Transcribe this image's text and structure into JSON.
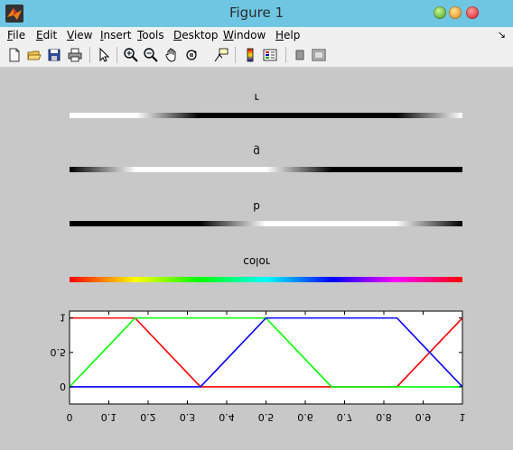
{
  "window": {
    "title": "Figure 1"
  },
  "menu": {
    "items": [
      {
        "label": "File",
        "underline": "F",
        "rest": "ile"
      },
      {
        "label": "Edit",
        "underline": "E",
        "rest": "dit"
      },
      {
        "label": "View",
        "underline": "V",
        "rest": "iew"
      },
      {
        "label": "Insert",
        "underline": "I",
        "rest": "nsert"
      },
      {
        "label": "Tools",
        "underline": "T",
        "rest": "ools"
      },
      {
        "label": "Desktop",
        "underline": "D",
        "rest": "esktop"
      },
      {
        "label": "Window",
        "underline": "W",
        "rest": "indow"
      },
      {
        "label": "Help",
        "underline": "H",
        "rest": "elp"
      }
    ],
    "dock_glyph": "↘"
  },
  "toolbar": {
    "buttons": [
      {
        "name": "new-figure-button",
        "icon": "new-file-icon"
      },
      {
        "name": "open-file-button",
        "icon": "open-folder-icon"
      },
      {
        "name": "save-figure-button",
        "icon": "save-disk-icon"
      },
      {
        "name": "print-figure-button",
        "icon": "printer-icon"
      },
      {
        "name": "edit-plot-button",
        "icon": "arrow-pointer-icon"
      },
      {
        "name": "zoom-in-button",
        "icon": "zoom-in-icon"
      },
      {
        "name": "zoom-out-button",
        "icon": "zoom-out-icon"
      },
      {
        "name": "pan-button",
        "icon": "hand-icon"
      },
      {
        "name": "rotate-3d-button",
        "icon": "rotate-icon"
      },
      {
        "name": "data-cursor-button",
        "icon": "data-cursor-icon"
      },
      {
        "name": "insert-colorbar-button",
        "icon": "colorbar-icon"
      },
      {
        "name": "insert-legend-button",
        "icon": "legend-icon"
      },
      {
        "name": "hide-plot-tools-button",
        "icon": "hide-tools-icon"
      },
      {
        "name": "show-plot-tools-button",
        "icon": "show-tools-icon"
      }
    ]
  },
  "strips": {
    "r_label": "r",
    "g_label": "g",
    "b_label": "b",
    "color_label": "color"
  },
  "chart_data": {
    "type": "line",
    "title": "",
    "xlabel": "",
    "ylabel": "",
    "xlim": [
      0,
      1
    ],
    "ylim": [
      -0.25,
      1.1
    ],
    "x_ticks": [
      "0",
      "0.1",
      "0.2",
      "0.3",
      "0.4",
      "0.5",
      "0.6",
      "0.7",
      "0.8",
      "0.9",
      "1"
    ],
    "y_ticks": [
      "0",
      "0.5",
      "1"
    ],
    "x_tick_values": [
      0,
      0.1,
      0.2,
      0.3,
      0.4,
      0.5,
      0.6,
      0.7,
      0.8,
      0.9,
      1
    ],
    "y_tick_values": [
      0,
      0.5,
      1
    ],
    "series": [
      {
        "color": "#ff0000",
        "x": [
          0,
          0.1667,
          0.3333,
          0.8333,
          1
        ],
        "y": [
          1,
          1,
          0,
          0,
          1
        ]
      },
      {
        "color": "#00ff00",
        "x": [
          0,
          0.1667,
          0.5,
          0.6667,
          1
        ],
        "y": [
          0,
          1,
          1,
          0,
          0
        ]
      },
      {
        "color": "#0000ff",
        "x": [
          0,
          0.3333,
          0.5,
          0.8333,
          1
        ],
        "y": [
          0,
          0,
          1,
          1,
          0
        ]
      }
    ],
    "grid": false,
    "mirrored": true
  }
}
